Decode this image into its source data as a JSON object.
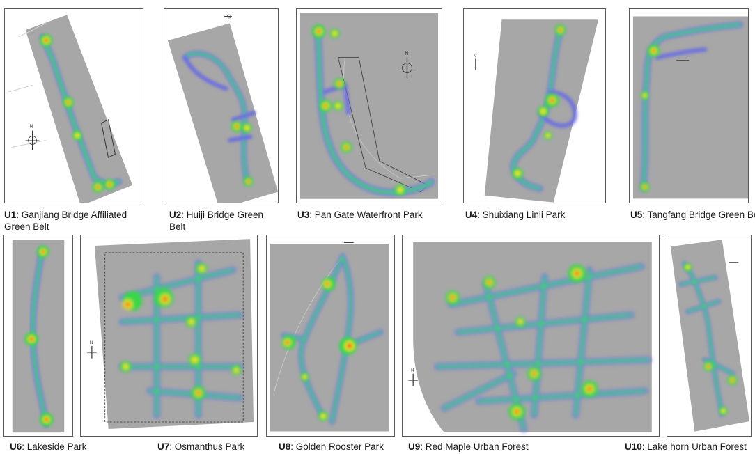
{
  "figure": {
    "panels": [
      {
        "id": "U1",
        "label": "U1",
        "name_line1": ": Ganjiang Bridge Affiliated",
        "name_line2": "Green Belt"
      },
      {
        "id": "U2",
        "label": "U2",
        "name_line1": ": Huiji Bridge Green",
        "name_line2": "Belt"
      },
      {
        "id": "U3",
        "label": "U3",
        "name_line1": ": Pan Gate Waterfront Park",
        "name_line2": ""
      },
      {
        "id": "U4",
        "label": "U4",
        "name_line1": ": Shuixiang Linli Park",
        "name_line2": ""
      },
      {
        "id": "U5",
        "label": "U5",
        "name_line1": ": Tangfang Bridge Green Belt",
        "name_line2": ""
      },
      {
        "id": "U6",
        "label": "U6",
        "name_line1": ": Lakeside Park",
        "name_line2": ""
      },
      {
        "id": "U7",
        "label": "U7",
        "name_line1": ": Osmanthus Park",
        "name_line2": ""
      },
      {
        "id": "U8",
        "label": "U8",
        "name_line1": ": Golden Rooster Park",
        "name_line2": ""
      },
      {
        "id": "U9",
        "label": "U9",
        "name_line1": ": Red Maple Urban Forest",
        "name_line2": ""
      },
      {
        "id": "U10",
        "label": "U10",
        "name_line1": ": Lake horn Urban Forest",
        "name_line2": ""
      }
    ],
    "north_label": "N",
    "heatmap_colors": {
      "low": "#6a6ee0",
      "mid": "#39d84a",
      "high": "#f2e31c",
      "peak": "#e8231e"
    },
    "park_fill": "#a7a7a7"
  }
}
